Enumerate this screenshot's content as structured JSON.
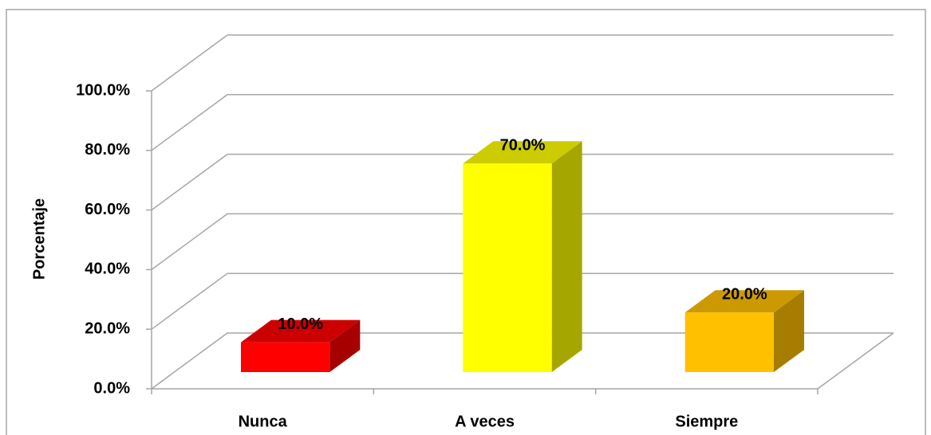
{
  "chart_data": {
    "type": "bar3d",
    "y_axis_label": "Porcentaje",
    "categories": [
      "Nunca",
      "A veces",
      "Siempre"
    ],
    "values": [
      10,
      70,
      20
    ],
    "value_labels": [
      "10.0%",
      "70.0%",
      "20.0%"
    ],
    "colors": [
      "#ff0000",
      "#ffff00",
      "#ffc000"
    ],
    "ylim": [
      0,
      100
    ],
    "yticks": [
      {
        "value": 0,
        "label": "0.0%"
      },
      {
        "value": 20,
        "label": "20.0%"
      },
      {
        "value": 40,
        "label": "40.0%"
      },
      {
        "value": 60,
        "label": "60.0%"
      },
      {
        "value": 80,
        "label": "80.0%"
      },
      {
        "value": 100,
        "label": "100.0%"
      }
    ],
    "grid": true
  }
}
